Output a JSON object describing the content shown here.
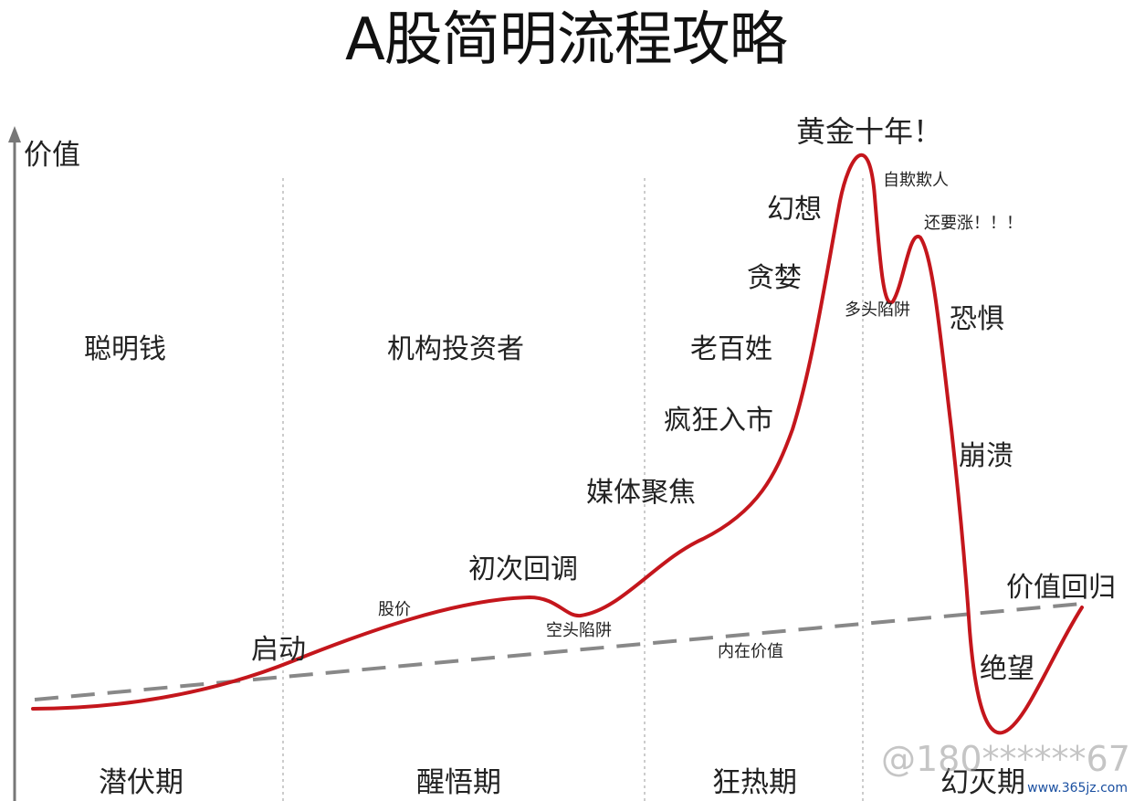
{
  "title": "A股简明流程攻略",
  "axis": {
    "y_label": "价值"
  },
  "investor_groups": [
    "聪明钱",
    "机构投资者",
    "老百姓"
  ],
  "phases": [
    "潜伏期",
    "醒悟期",
    "狂热期",
    "幻灭期"
  ],
  "curves": {
    "price_label": "股价",
    "intrinsic_label": "内在价值",
    "price_color": "#c4161c",
    "intrinsic_color": "#888888"
  },
  "stages": {
    "start": "启动",
    "first_pullback": "初次回调",
    "bear_trap": "空头陷阱",
    "media_focus": "媒体聚焦",
    "frenzy": "疯狂入市",
    "greed": "贪婪",
    "delusion": "幻想",
    "golden_decade": "黄金十年！",
    "self_deception": "自欺欺人",
    "bull_trap": "多头陷阱",
    "still_rising": "还要涨！！！",
    "fear": "恐惧",
    "collapse": "崩溃",
    "despair": "绝望",
    "return_to_value": "价值回归"
  },
  "watermark": "@180******67",
  "site": "www.365jz.com"
}
